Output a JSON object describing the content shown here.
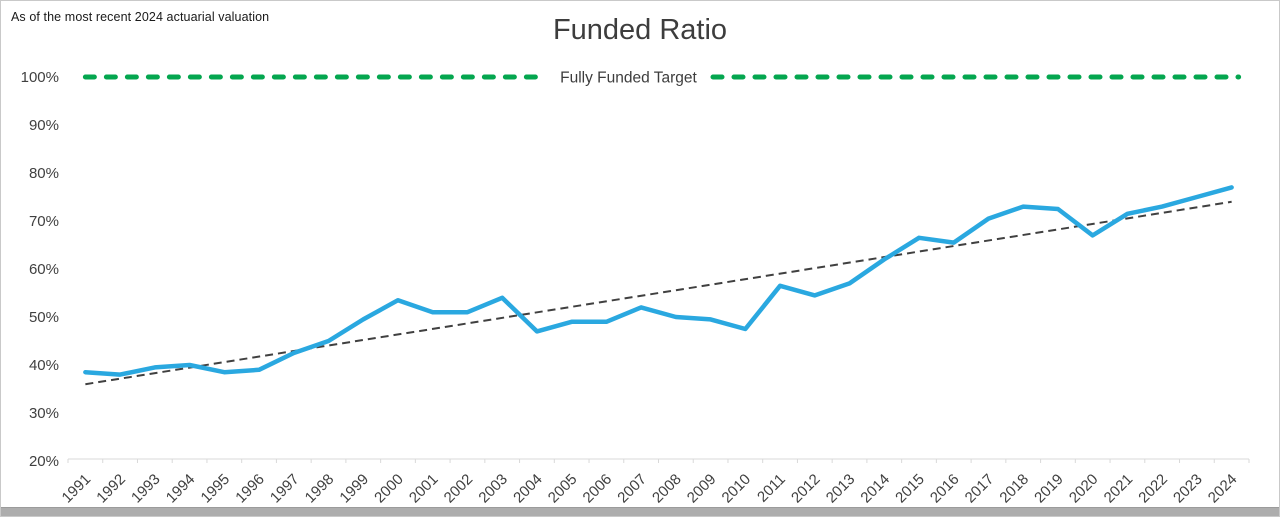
{
  "note": {
    "text": "As of the most recent 2024 actuarial valuation"
  },
  "chart_data": {
    "type": "line",
    "title": "Funded Ratio",
    "xlabel": "",
    "ylabel": "",
    "ylim": [
      20,
      100
    ],
    "yticks": [
      100,
      90,
      80,
      70,
      60,
      50,
      40,
      30,
      20
    ],
    "ytick_suffix": "%",
    "grid": false,
    "x": [
      1991,
      1992,
      1993,
      1994,
      1995,
      1996,
      1997,
      1998,
      1999,
      2000,
      2001,
      2002,
      2003,
      2004,
      2005,
      2006,
      2007,
      2008,
      2009,
      2010,
      2011,
      2012,
      2013,
      2014,
      2015,
      2016,
      2017,
      2018,
      2019,
      2020,
      2021,
      2022,
      2023,
      2024
    ],
    "series": [
      {
        "name": "Funded Ratio",
        "type": "line",
        "color": "#2aa8e0",
        "values": [
          38.5,
          38,
          39.5,
          40,
          38.5,
          39,
          42.5,
          45,
          49.5,
          53.5,
          51,
          51,
          54,
          47,
          49,
          49,
          52,
          50,
          49.5,
          47.5,
          56.5,
          54.5,
          57,
          62,
          66.5,
          65.5,
          70.5,
          73,
          72.5,
          67,
          71.5,
          73,
          75,
          77
        ]
      },
      {
        "name": "Linear Trend",
        "type": "dashed-line",
        "color": "#404040",
        "endpoint_values": [
          36,
          74
        ]
      },
      {
        "name": "Fully Funded Target",
        "type": "dashed-horizontal-line",
        "color": "#04a64f",
        "value": 100,
        "label": "Fully Funded Target"
      }
    ],
    "colors": {
      "axis": "#d9d9d9",
      "tick_text": "#404040",
      "target_label_text": "#3d3d3d"
    }
  }
}
